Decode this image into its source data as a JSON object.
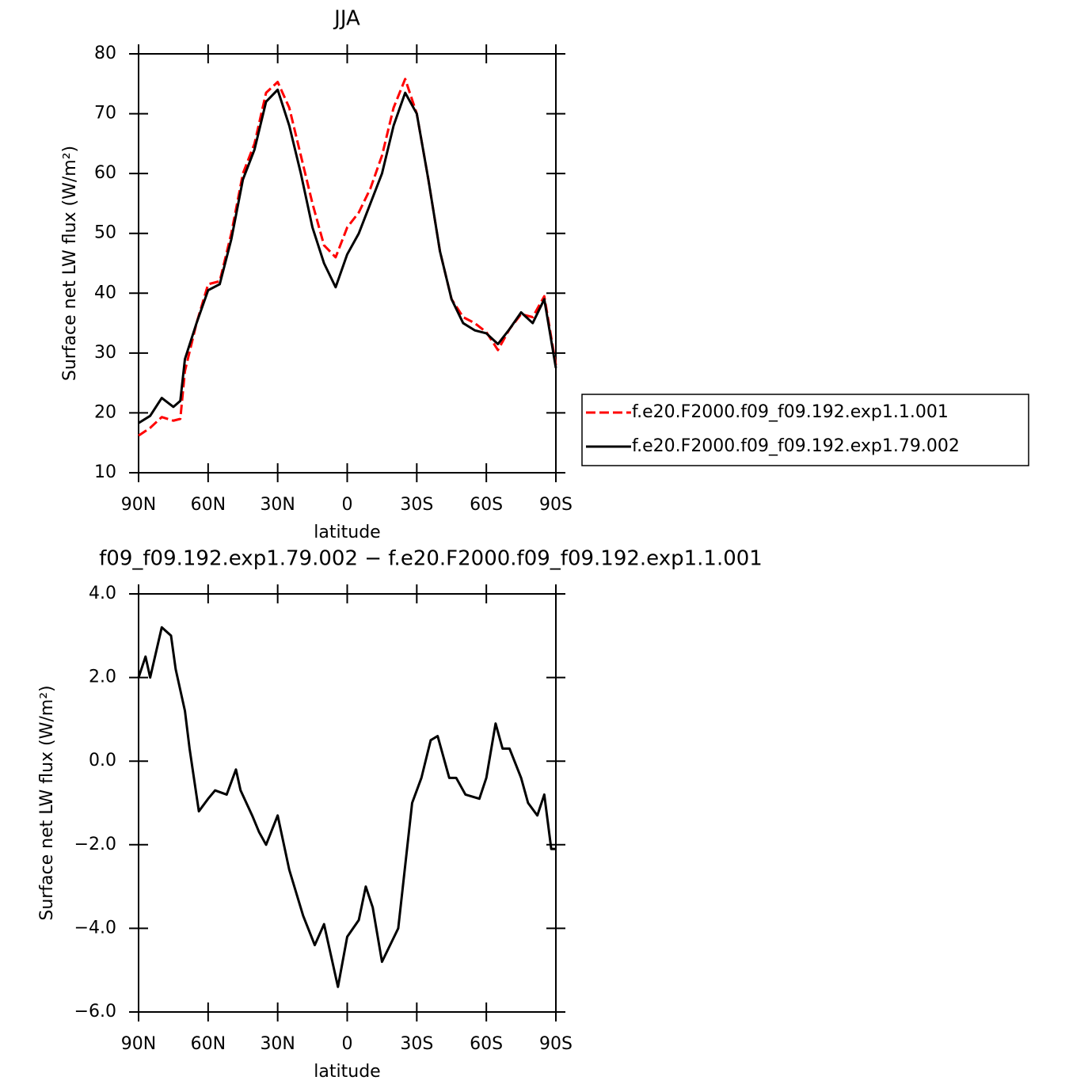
{
  "chart_data": [
    {
      "type": "line",
      "title": "JJA",
      "x_label": "latitude",
      "y_label": "Surface net LW flux (W/m²)",
      "x": [
        90,
        85,
        80,
        75,
        72,
        70,
        65,
        60,
        55,
        50,
        45,
        40,
        35,
        30,
        25,
        20,
        15,
        10,
        5,
        0,
        -5,
        -10,
        -15,
        -20,
        -25,
        -30,
        -35,
        -40,
        -45,
        -50,
        -55,
        -60,
        -65,
        -70,
        -75,
        -80,
        -85,
        -90
      ],
      "series": [
        {
          "name": "f.e20.F2000.f09_f09.192.exp1.1.001",
          "color": "#ff0000",
          "dash": true,
          "values": [
            16.2,
            17.5,
            19.3,
            18.7,
            19,
            27,
            35,
            41.5,
            42,
            50,
            60,
            65,
            73.5,
            75.3,
            71,
            63,
            55,
            48,
            46,
            51,
            53.5,
            57.5,
            63,
            71,
            75.8,
            70,
            59,
            47,
            39,
            36,
            35,
            33.5,
            30.5,
            34,
            36.5,
            36,
            39.5,
            28
          ]
        },
        {
          "name": "f.e20.F2000.f09_f09.192.exp1.79.002",
          "color": "#000000",
          "dash": false,
          "values": [
            18.3,
            19.5,
            22.5,
            21,
            22,
            29,
            35,
            40.5,
            41.5,
            49,
            59,
            64,
            72,
            74,
            68,
            60,
            51,
            45,
            41,
            46.5,
            50,
            55,
            60,
            68,
            73.5,
            70,
            59,
            47,
            39,
            35,
            33.8,
            33.3,
            31.5,
            34,
            36.8,
            35,
            39,
            27.5
          ]
        }
      ],
      "xlim": [
        90,
        -90
      ],
      "xticks": [
        {
          "value": 90,
          "label": "90N"
        },
        {
          "value": 60,
          "label": "60N"
        },
        {
          "value": 30,
          "label": "30N"
        },
        0,
        {
          "value": -30,
          "label": "30S"
        },
        {
          "value": -60,
          "label": "60S"
        },
        {
          "value": -90,
          "label": "90S"
        }
      ],
      "ylim": [
        10,
        80
      ],
      "yticks": [
        10,
        20,
        30,
        40,
        50,
        60,
        70,
        80
      ],
      "legend": "right"
    },
    {
      "type": "line",
      "title": "f09_f09.192.exp1.79.002 − f.e20.F2000.f09_f09.192.exp1.1.001",
      "x_label": "latitude",
      "y_label": "Surface net LW flux (W/m²)",
      "x": [
        90,
        87,
        85,
        80,
        76,
        74,
        70,
        68,
        64,
        60,
        57,
        52,
        48,
        46,
        41,
        38,
        35,
        30,
        25,
        19,
        14,
        10,
        4,
        0,
        -5,
        -8,
        -11,
        -15,
        -22,
        -28,
        -32,
        -36,
        -39,
        -44,
        -47,
        -51,
        -57,
        -60,
        -64,
        -67,
        -70,
        -75,
        -78,
        -82,
        -85,
        -88,
        -90
      ],
      "series": [
        {
          "name": null,
          "color": "#000000",
          "dash": false,
          "values": [
            2.0,
            2.5,
            2.0,
            3.2,
            3.0,
            2.2,
            1.2,
            0.3,
            -1.2,
            -0.9,
            -0.7,
            -0.8,
            -0.2,
            -0.7,
            -1.3,
            -1.7,
            -2.0,
            -1.3,
            -2.6,
            -3.7,
            -4.4,
            -3.9,
            -5.4,
            -4.2,
            -3.8,
            -3.0,
            -3.5,
            -4.8,
            -4.0,
            -1.0,
            -0.4,
            0.5,
            0.6,
            -0.4,
            -0.4,
            -0.8,
            -0.9,
            -0.4,
            0.9,
            0.3,
            0.3,
            -0.4,
            -1.0,
            -1.3,
            -0.8,
            -2.1,
            -2.1
          ]
        }
      ],
      "xlim": [
        90,
        -90
      ],
      "xticks": [
        {
          "value": 90,
          "label": "90N"
        },
        {
          "value": 60,
          "label": "60N"
        },
        {
          "value": 30,
          "label": "30N"
        },
        0,
        {
          "value": -30,
          "label": "30S"
        },
        {
          "value": -60,
          "label": "60S"
        },
        {
          "value": -90,
          "label": "90S"
        }
      ],
      "ylim": [
        -6,
        4
      ],
      "yticks": [
        {
          "value": -6,
          "label": "−6.0"
        },
        {
          "value": -4,
          "label": "−4.0"
        },
        {
          "value": -2,
          "label": "−2.0"
        },
        {
          "value": 0,
          "label": "0.0"
        },
        {
          "value": 2,
          "label": "2.0"
        },
        {
          "value": 4,
          "label": "4.0"
        }
      ]
    }
  ]
}
